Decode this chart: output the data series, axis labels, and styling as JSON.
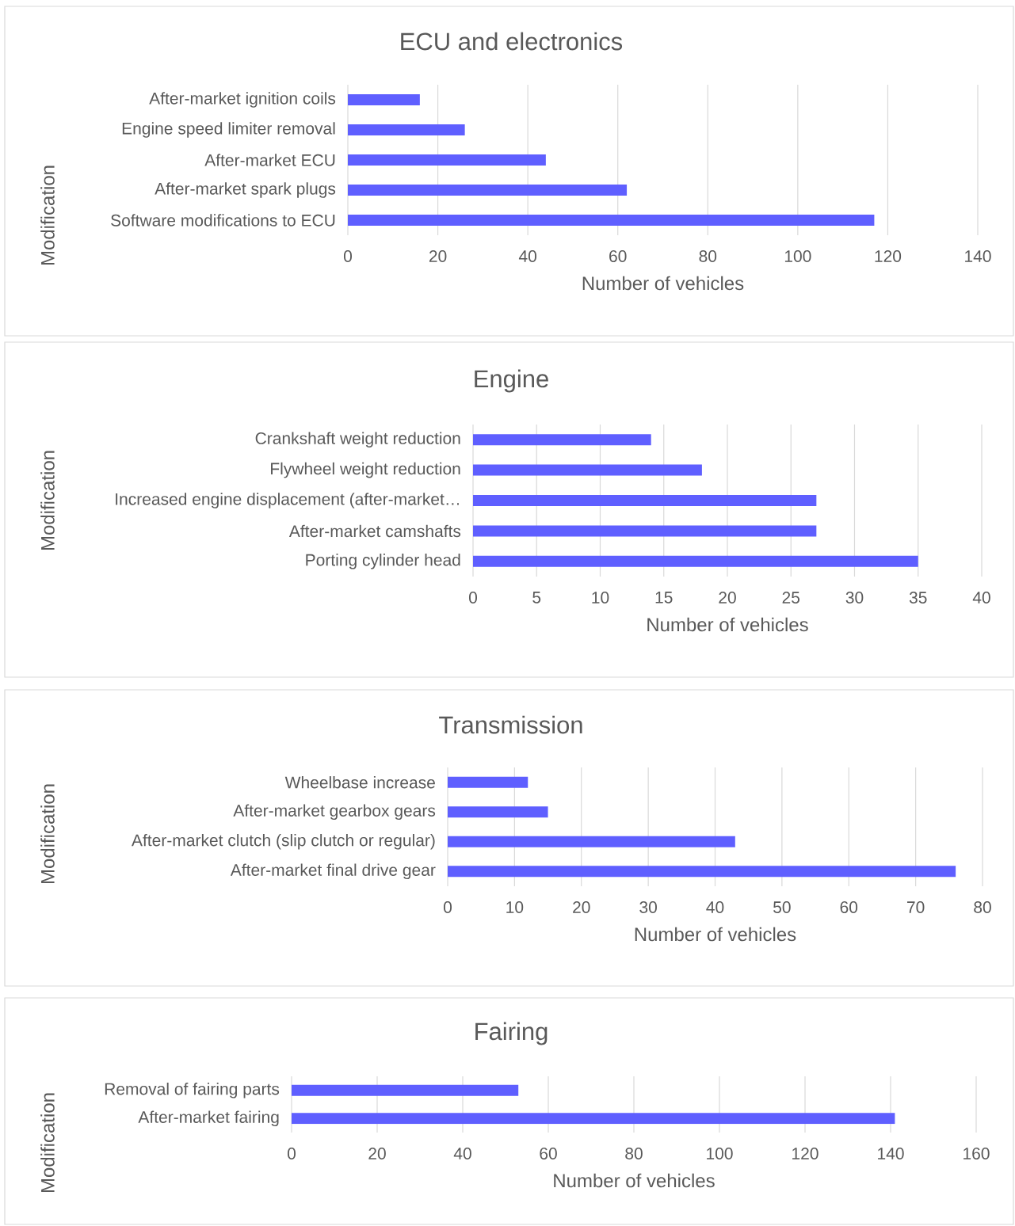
{
  "chart_data": [
    {
      "type": "bar",
      "orientation": "horizontal",
      "title": "ECU and electronics",
      "xlabel": "Number of vehicles",
      "ylabel": "Modification",
      "categories": [
        "After-market ignition coils",
        "Engine speed limiter removal",
        "After-market ECU",
        "After-market spark plugs",
        "Software modifications to ECU"
      ],
      "values": [
        16,
        26,
        44,
        62,
        117
      ],
      "color": "#5f5fff",
      "xlim": [
        0,
        140
      ],
      "xticks": [
        0,
        20,
        40,
        60,
        80,
        100,
        120,
        140
      ],
      "grid": "x"
    },
    {
      "type": "bar",
      "orientation": "horizontal",
      "title": "Engine",
      "xlabel": "Number of vehicles",
      "ylabel": "Modification",
      "categories": [
        "Crankshaft weight reduction",
        "Flywheel weight reduction",
        "Increased engine displacement (after-market…",
        "After-market camshafts",
        "Porting cylinder head"
      ],
      "values": [
        14,
        18,
        27,
        27,
        35
      ],
      "color": "#5f5fff",
      "xlim": [
        0,
        40
      ],
      "xticks": [
        0,
        5,
        10,
        15,
        20,
        25,
        30,
        35,
        40
      ],
      "grid": "x"
    },
    {
      "type": "bar",
      "orientation": "horizontal",
      "title": "Transmission",
      "xlabel": "Number of vehicles",
      "ylabel": "Modification",
      "categories": [
        "Wheelbase increase",
        "After-market gearbox gears",
        "After-market clutch (slip clutch or regular)",
        "After-market final drive gear"
      ],
      "values": [
        12,
        15,
        43,
        76
      ],
      "color": "#5f5fff",
      "xlim": [
        0,
        80
      ],
      "xticks": [
        0,
        10,
        20,
        30,
        40,
        50,
        60,
        70,
        80
      ],
      "grid": "x"
    },
    {
      "type": "bar",
      "orientation": "horizontal",
      "title": "Fairing",
      "xlabel": "Number of vehicles",
      "ylabel": "Modification",
      "categories": [
        "Removal of fairing parts",
        "After-market fairing"
      ],
      "values": [
        53,
        141
      ],
      "color": "#5f5fff",
      "xlim": [
        0,
        160
      ],
      "xticks": [
        0,
        20,
        40,
        60,
        80,
        100,
        120,
        140,
        160
      ],
      "grid": "x"
    }
  ]
}
